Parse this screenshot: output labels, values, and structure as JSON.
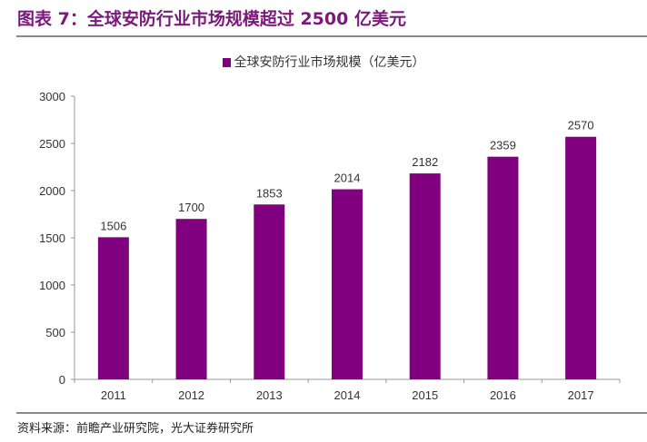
{
  "header": {
    "title": "图表 7：全球安防行业市场规模超过 2500 亿美元"
  },
  "footer": {
    "source": "资料来源：前瞻产业研究院，光大证券研究所"
  },
  "chart_data": {
    "type": "bar",
    "categories": [
      "2011",
      "2012",
      "2013",
      "2014",
      "2015",
      "2016",
      "2017"
    ],
    "series": [
      {
        "name": "全球安防行业市场规模（亿美元）",
        "values": [
          1506,
          1700,
          1853,
          2014,
          2182,
          2359,
          2570
        ],
        "color": "#800080"
      }
    ],
    "ylim": [
      0,
      3000
    ],
    "yticks": [
      0,
      500,
      1000,
      1500,
      2000,
      2500,
      3000
    ],
    "legend": "top",
    "grid": false,
    "data_labels": true
  }
}
